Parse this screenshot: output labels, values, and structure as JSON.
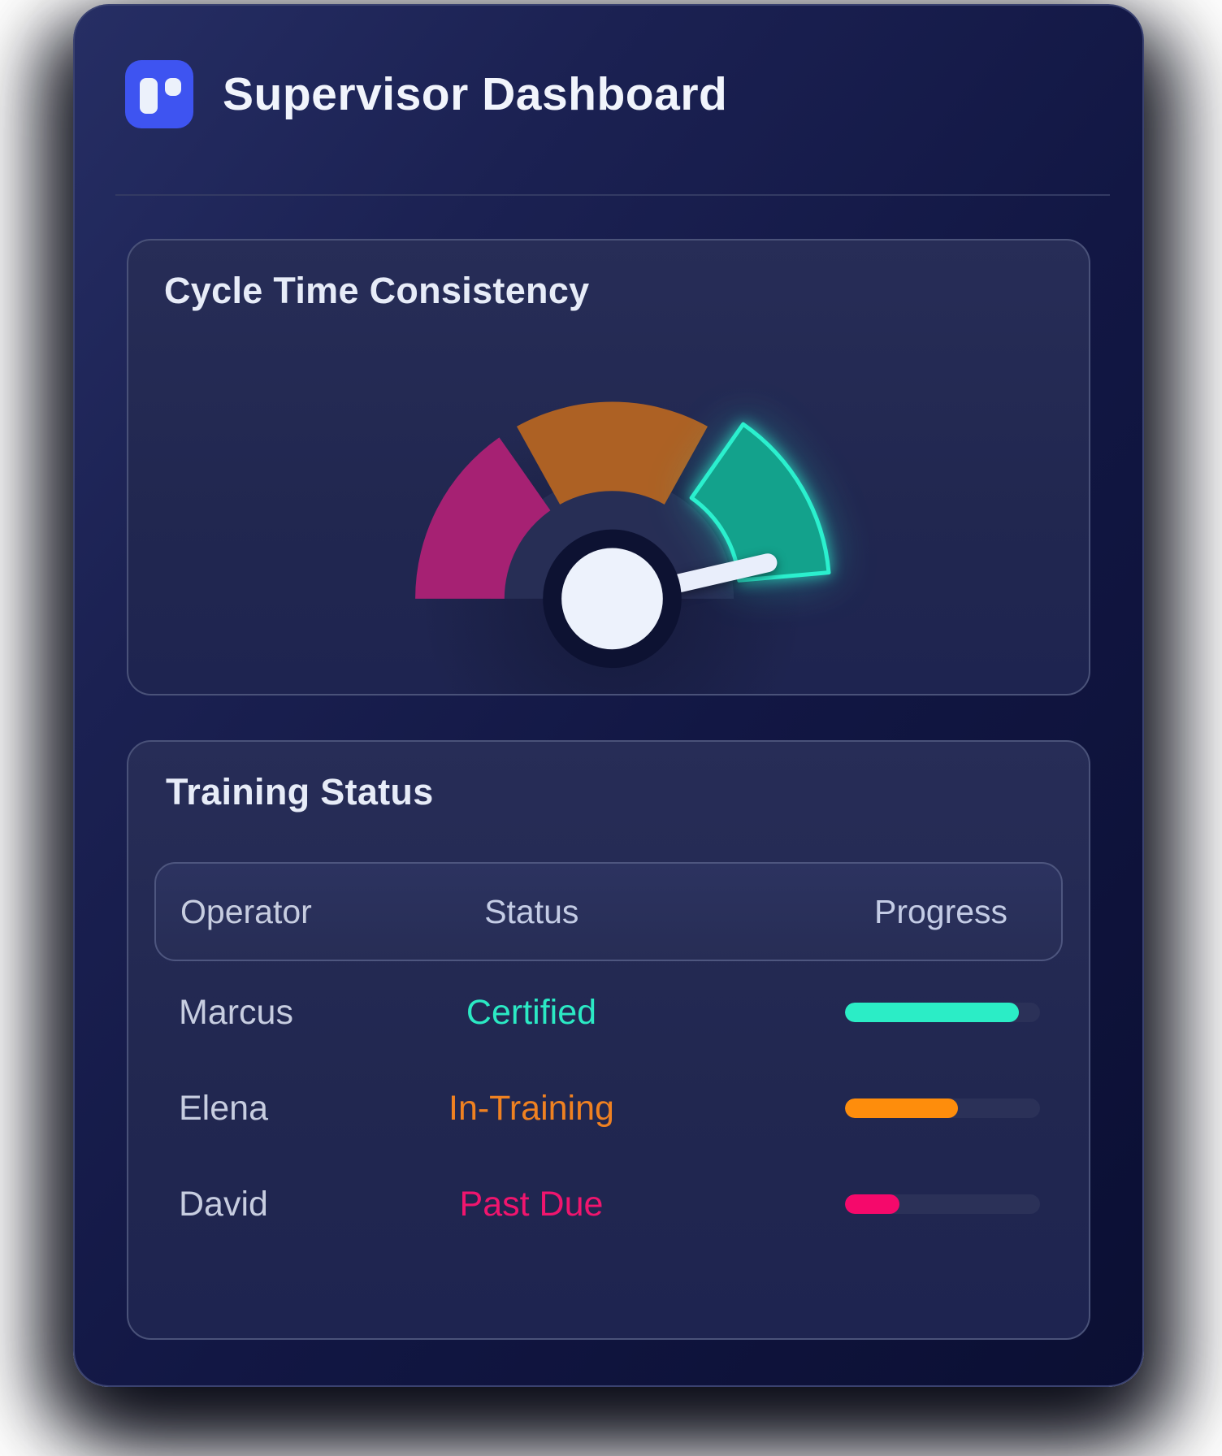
{
  "header": {
    "title": "Supervisor Dashboard",
    "logo_icon": "kanban-board-icon",
    "logo_color": "#3e54f1"
  },
  "cards": {
    "gauge": {
      "title": "Cycle Time Consistency"
    },
    "training": {
      "title": "Training Status",
      "columns": [
        "Operator",
        "Status",
        "Progress"
      ],
      "rows": [
        {
          "operator": "Marcus",
          "status": "Certified",
          "status_color": "#2be9c4",
          "progress": 0.89,
          "bar_color": "#2bedc6"
        },
        {
          "operator": "Elena",
          "status": "In-Training",
          "status_color": "#ef8121",
          "progress": 0.58,
          "bar_color": "#fe8d0c"
        },
        {
          "operator": "David",
          "status": "Past Due",
          "status_color": "#f0156e",
          "progress": 0.28,
          "bar_color": "#f5096b"
        }
      ]
    }
  },
  "chart_data": {
    "type": "gauge",
    "title": "Cycle Time Consistency",
    "orientation": "semicircle",
    "segments": [
      {
        "label": "zone-low",
        "color": "#a62173",
        "start_deg": 180,
        "end_deg": 125,
        "highlighted": false
      },
      {
        "label": "zone-mid",
        "color": "#ad6124",
        "start_deg": 119,
        "end_deg": 61,
        "highlighted": false
      },
      {
        "label": "zone-high",
        "color": "#13a28c",
        "stroke": "#2bf0ce",
        "start_deg": 55,
        "end_deg": 5,
        "highlighted": true
      }
    ],
    "needle_deg": 13,
    "needle_color": "#e9eefb",
    "hub_color": "#edf2fc",
    "hub_ring_color": "#0d1232",
    "inner_band_color": "#272e55",
    "legend": "none",
    "axis_labels": "none"
  },
  "colors": {
    "page_bg": "#ffffff",
    "card_bg_top": "#262e64",
    "card_bg_bottom": "#0b0f33",
    "panel_border": "#4a5279",
    "track": "#2b3158",
    "title_text": "#f1f4fc",
    "body_text": "#c7cde0"
  }
}
